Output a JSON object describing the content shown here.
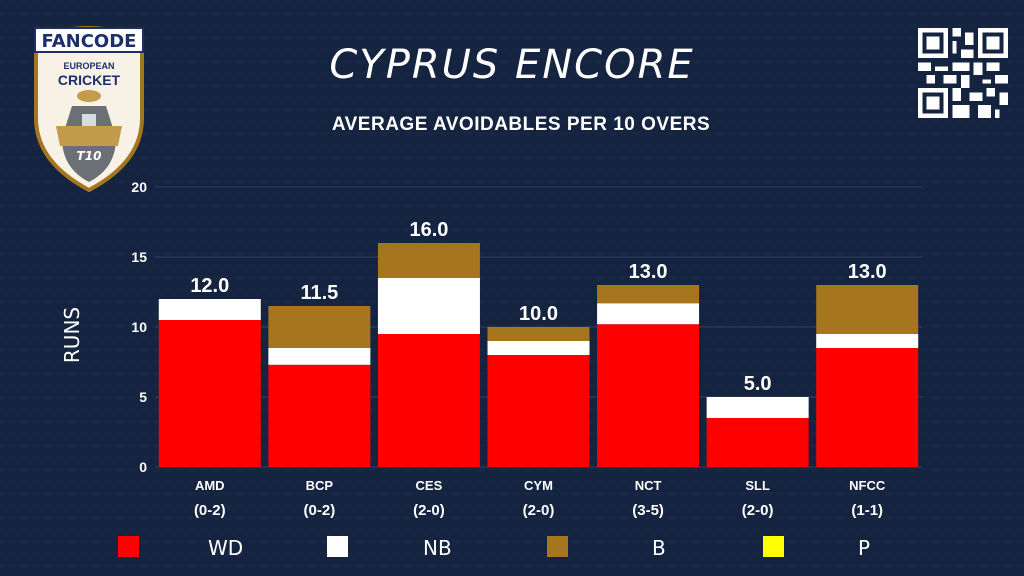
{
  "logo": {
    "brand": "FANCODE",
    "line1": "EUROPEAN",
    "line2": "CRICKET",
    "badge": "T10"
  },
  "title": "CYPRUS ENCORE",
  "subtitle": "AVERAGE AVOIDABLES PER 10 OVERS",
  "colors": {
    "background": "#14233f",
    "WD": "#ff0000",
    "NB": "#ffffff",
    "B": "#a5761d",
    "P": "#ffff00",
    "grid": "#2e4163"
  },
  "chart_data": {
    "type": "bar",
    "stacked": true,
    "ylabel": "RUNS",
    "ylim": [
      0,
      20
    ],
    "yticks": [
      0,
      5,
      10,
      15,
      20
    ],
    "grid": true,
    "legend_position": "bottom",
    "categories": [
      "AMD",
      "BCP",
      "CES",
      "CYM",
      "NCT",
      "SLL",
      "NFCC"
    ],
    "records": [
      "(0-2)",
      "(0-2)",
      "(2-0)",
      "(2-0)",
      "(3-5)",
      "(2-0)",
      "(1-1)"
    ],
    "totals": [
      "12.0",
      "11.5",
      "16.0",
      "10.0",
      "13.0",
      "5.0",
      "13.0"
    ],
    "total_values": [
      12.0,
      11.5,
      16.0,
      10.0,
      13.0,
      5.0,
      13.0
    ],
    "series": [
      {
        "name": "WD",
        "values": [
          10.5,
          7.3,
          9.5,
          8.0,
          10.2,
          3.5,
          8.5
        ]
      },
      {
        "name": "NB",
        "values": [
          1.5,
          1.2,
          4.0,
          1.0,
          1.5,
          1.5,
          1.0
        ]
      },
      {
        "name": "B",
        "values": [
          0.0,
          3.0,
          2.5,
          1.0,
          1.3,
          0.0,
          3.5
        ]
      },
      {
        "name": "P",
        "values": [
          0,
          0,
          0,
          0,
          0,
          0,
          0
        ]
      }
    ]
  }
}
